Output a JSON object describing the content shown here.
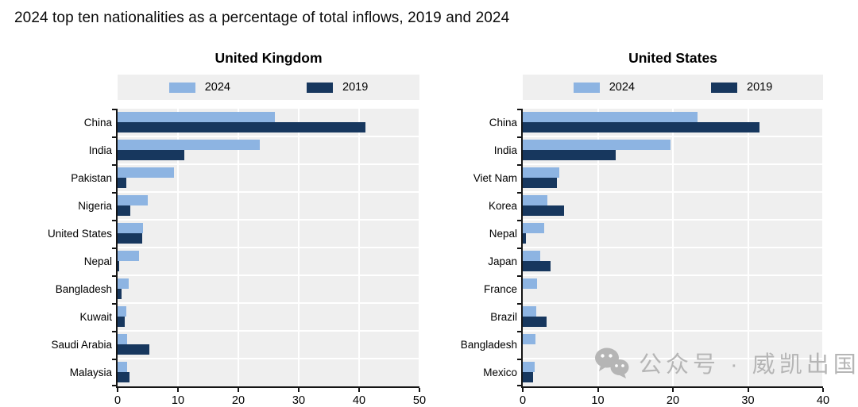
{
  "page_title": "2024 top ten nationalities as a percentage of total inflows, 2019 and 2024",
  "colors": {
    "bar_2024": "#8db4e2",
    "bar_2019": "#17375e",
    "plot_background": "#efefef",
    "legend_background": "#efefef",
    "gridline": "#ffffff",
    "axis": "#141414",
    "watermark": "#afafaf"
  },
  "watermark": {
    "icon": "wechat-icon",
    "text": "公众号 · 威凯出国"
  },
  "chart_data": [
    {
      "type": "bar",
      "orientation": "horizontal",
      "title": "United Kingdom",
      "categories": [
        "China",
        "India",
        "Pakistan",
        "Nigeria",
        "United States",
        "Nepal",
        "Bangladesh",
        "Kuwait",
        "Saudi Arabia",
        "Malaysia"
      ],
      "series": [
        {
          "name": "2024",
          "color": "#8db4e2",
          "values": [
            26,
            23.5,
            9.4,
            5.0,
            4.2,
            3.5,
            1.8,
            1.5,
            1.6,
            1.6
          ]
        },
        {
          "name": "2019",
          "color": "#17375e",
          "values": [
            41,
            11,
            1.5,
            2.1,
            4.1,
            0.2,
            0.6,
            1.2,
            5.2,
            2.0
          ]
        }
      ],
      "xlim": [
        0,
        50
      ],
      "xticks": [
        0,
        10,
        20,
        30,
        40,
        50
      ],
      "legend_position": "top",
      "grid": true,
      "xlabel": "",
      "ylabel": ""
    },
    {
      "type": "bar",
      "orientation": "horizontal",
      "title": "United States",
      "categories": [
        "China",
        "India",
        "Viet Nam",
        "Korea",
        "Nepal",
        "Japan",
        "France",
        "Brazil",
        "Bangladesh",
        "Mexico"
      ],
      "series": [
        {
          "name": "2024",
          "color": "#8db4e2",
          "values": [
            23.3,
            19.7,
            4.9,
            3.3,
            2.9,
            2.3,
            1.9,
            1.8,
            1.7,
            1.6
          ]
        },
        {
          "name": "2019",
          "color": "#17375e",
          "values": [
            31.5,
            12.4,
            4.6,
            5.5,
            0.4,
            3.7,
            0,
            3.2,
            0,
            1.4
          ]
        }
      ],
      "xlim": [
        0,
        40
      ],
      "xticks": [
        0,
        10,
        20,
        30,
        40
      ],
      "legend_position": "top",
      "grid": true,
      "xlabel": "",
      "ylabel": ""
    }
  ]
}
